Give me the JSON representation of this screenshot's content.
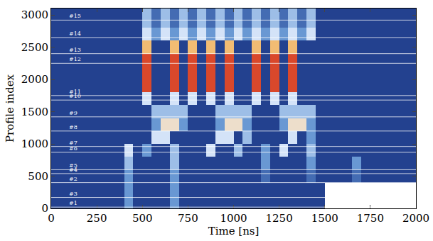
{
  "chart_data": {
    "type": "heatmap",
    "x_label": "Time [ns]",
    "y_label": "Profile index",
    "xlim": [
      0,
      2000
    ],
    "xticks": [
      0,
      250,
      500,
      750,
      1000,
      1250,
      1500,
      1750,
      2000
    ],
    "ylim": [
      0,
      3100
    ],
    "yticks": [
      0,
      500,
      1000,
      1500,
      2000,
      2500,
      3000
    ],
    "zlim": [
      0,
      9
    ],
    "x": [
      25,
      75,
      125,
      175,
      225,
      275,
      325,
      375,
      425,
      475,
      525,
      575,
      625,
      675,
      725,
      775,
      825,
      875,
      925,
      975,
      1025,
      1075,
      1125,
      1175,
      1225,
      1275,
      1325,
      1375,
      1425,
      1475,
      1525,
      1575,
      1625,
      1675,
      1725,
      1775,
      1825,
      1875,
      1925,
      1975
    ],
    "y": [
      100,
      300,
      500,
      700,
      900,
      1100,
      1300,
      1500,
      1700,
      1900,
      2100,
      2300,
      2500,
      2700,
      2900,
      3100
    ],
    "z": [
      [
        0,
        0,
        0,
        0,
        0,
        0,
        0,
        0,
        3,
        0,
        0,
        0,
        0,
        3,
        0,
        0,
        0,
        0,
        0,
        0,
        0,
        0,
        0,
        0,
        0,
        0,
        0,
        0,
        0,
        0,
        null,
        null,
        null,
        null,
        null,
        null,
        null,
        null,
        null,
        null
      ],
      [
        0,
        0,
        0,
        0,
        0,
        0,
        0,
        0,
        3,
        0,
        0,
        0,
        0,
        3,
        0,
        0,
        0,
        0,
        0,
        0,
        0,
        0,
        0,
        0,
        0,
        0,
        0,
        0,
        0,
        0,
        null,
        null,
        null,
        null,
        null,
        null,
        null,
        null,
        null,
        null
      ],
      [
        0,
        0,
        0,
        0,
        0,
        0,
        0,
        0,
        3,
        0,
        0,
        0,
        0,
        3,
        0,
        0,
        0,
        0,
        0,
        0,
        0,
        0,
        0,
        2,
        0,
        0,
        0,
        0,
        2,
        0,
        0,
        0,
        0,
        2,
        0,
        0,
        0,
        0,
        0,
        0
      ],
      [
        0,
        0,
        0,
        0,
        0,
        0,
        0,
        0,
        4,
        0,
        0,
        0,
        0,
        4,
        0,
        0,
        0,
        0,
        0,
        0,
        0,
        0,
        0,
        3,
        0,
        0,
        0,
        0,
        3,
        0,
        0,
        0,
        0,
        3,
        0,
        0,
        0,
        0,
        0,
        0
      ],
      [
        0,
        0,
        0,
        0,
        0,
        0,
        0,
        0,
        5,
        0,
        3,
        0,
        0,
        4,
        0,
        0,
        0,
        5,
        0,
        0,
        4,
        0,
        0,
        3,
        0,
        5,
        0,
        0,
        4,
        0,
        0,
        0,
        0,
        0,
        0,
        0,
        0,
        0,
        0,
        0
      ],
      [
        0,
        0,
        0,
        0,
        0,
        0,
        0,
        0,
        0,
        0,
        0,
        5,
        5,
        0,
        0,
        0,
        0,
        0,
        5,
        5,
        0,
        4,
        0,
        0,
        0,
        0,
        5,
        0,
        3,
        0,
        0,
        0,
        0,
        0,
        0,
        0,
        0,
        0,
        0,
        0
      ],
      [
        0,
        0,
        0,
        0,
        0,
        0,
        0,
        0,
        0,
        0,
        0,
        3,
        6,
        6,
        3,
        0,
        0,
        0,
        3,
        6,
        6,
        3,
        0,
        0,
        0,
        3,
        6,
        6,
        3,
        0,
        0,
        0,
        0,
        0,
        0,
        0,
        0,
        0,
        0,
        0
      ],
      [
        0,
        0,
        0,
        0,
        0,
        0,
        0,
        0,
        0,
        0,
        0,
        4,
        4,
        4,
        4,
        0,
        0,
        0,
        4,
        4,
        4,
        4,
        0,
        0,
        0,
        4,
        4,
        4,
        4,
        0,
        0,
        0,
        0,
        0,
        0,
        0,
        0,
        0,
        0,
        0
      ],
      [
        0,
        0,
        0,
        0,
        0,
        0,
        0,
        0,
        0,
        0,
        5,
        0,
        0,
        5,
        0,
        5,
        0,
        5,
        0,
        5,
        0,
        0,
        5,
        0,
        5,
        0,
        5,
        0,
        0,
        0,
        0,
        0,
        0,
        0,
        0,
        0,
        0,
        0,
        0,
        0
      ],
      [
        0,
        0,
        0,
        0,
        0,
        0,
        0,
        0,
        0,
        0,
        9,
        0,
        0,
        9,
        0,
        9,
        0,
        9,
        0,
        9,
        0,
        0,
        9,
        0,
        9,
        0,
        9,
        0,
        0,
        0,
        0,
        0,
        0,
        0,
        0,
        0,
        0,
        0,
        0,
        0
      ],
      [
        0,
        0,
        0,
        0,
        0,
        0,
        0,
        0,
        0,
        0,
        9,
        0,
        0,
        9,
        0,
        9,
        0,
        9,
        0,
        9,
        0,
        0,
        9,
        0,
        9,
        0,
        9,
        0,
        0,
        0,
        0,
        0,
        0,
        0,
        0,
        0,
        0,
        0,
        0,
        0
      ],
      [
        0,
        0,
        0,
        0,
        0,
        0,
        0,
        0,
        0,
        0,
        9,
        0,
        0,
        9,
        0,
        9,
        0,
        9,
        0,
        9,
        0,
        0,
        9,
        0,
        9,
        0,
        9,
        0,
        0,
        0,
        0,
        0,
        0,
        0,
        0,
        0,
        0,
        0,
        0,
        0
      ],
      [
        0,
        0,
        0,
        0,
        0,
        0,
        0,
        0,
        0,
        0,
        7,
        0,
        0,
        7,
        0,
        7,
        0,
        7,
        0,
        7,
        0,
        0,
        7,
        0,
        7,
        0,
        7,
        0,
        0,
        0,
        0,
        0,
        0,
        0,
        0,
        0,
        0,
        0,
        0,
        0
      ],
      [
        0,
        0,
        0,
        0,
        0,
        0,
        0,
        0,
        0,
        0,
        5,
        3,
        5,
        3,
        5,
        3,
        5,
        3,
        5,
        3,
        5,
        3,
        5,
        3,
        5,
        3,
        5,
        3,
        5,
        0,
        0,
        0,
        0,
        0,
        0,
        0,
        0,
        0,
        0,
        0
      ],
      [
        0,
        0,
        0,
        0,
        0,
        0,
        0,
        0,
        0,
        0,
        4,
        2,
        4,
        2,
        4,
        2,
        4,
        2,
        4,
        2,
        4,
        2,
        4,
        2,
        4,
        2,
        4,
        2,
        4,
        0,
        0,
        0,
        0,
        0,
        0,
        0,
        0,
        0,
        0,
        0
      ],
      [
        0,
        0,
        0,
        0,
        0,
        0,
        0,
        0,
        0,
        0,
        4,
        2,
        4,
        2,
        4,
        2,
        4,
        2,
        4,
        2,
        4,
        2,
        4,
        2,
        4,
        2,
        4,
        2,
        4,
        0,
        0,
        0,
        0,
        0,
        0,
        0,
        0,
        0,
        0,
        0
      ]
    ],
    "profiles": [
      {
        "name": "#1",
        "value": 20
      },
      {
        "name": "#2",
        "value": 400
      },
      {
        "name": "#3",
        "value": 170
      },
      {
        "name": "#4",
        "value": 540
      },
      {
        "name": "#5",
        "value": 600
      },
      {
        "name": "#6",
        "value": 870
      },
      {
        "name": "#7",
        "value": 960
      },
      {
        "name": "#8",
        "value": 1200
      },
      {
        "name": "#9",
        "value": 1420
      },
      {
        "name": "#10",
        "value": 1680
      },
      {
        "name": "#11",
        "value": 1750
      },
      {
        "name": "#12",
        "value": 2250
      },
      {
        "name": "#13",
        "value": 2400
      },
      {
        "name": "#14",
        "value": 2650
      },
      {
        "name": "#15",
        "value": 2920
      }
    ]
  }
}
